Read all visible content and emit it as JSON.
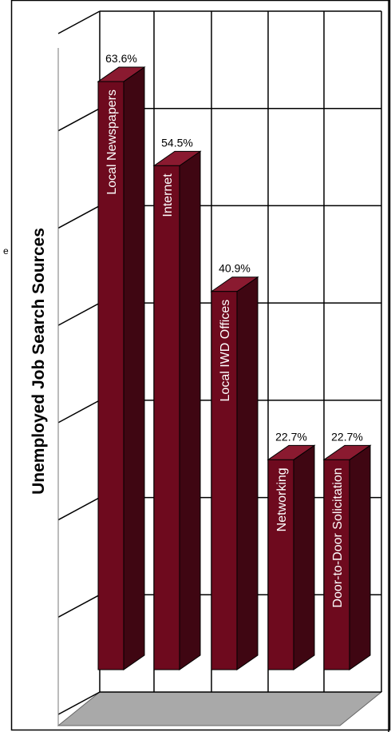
{
  "chart_data": {
    "type": "bar",
    "title": "Unemployed Job Search Sources",
    "categories": [
      "Local Newspapers",
      "Internet",
      "Local IWD Offices",
      "Networking",
      "Door-to-Door Solicitation"
    ],
    "values": [
      63.6,
      54.5,
      40.9,
      22.7,
      22.7
    ],
    "data_labels": [
      "63.6%",
      "54.5%",
      "40.9%",
      "22.7%",
      "22.7%"
    ],
    "ylim": [
      0,
      70
    ],
    "grid": true,
    "legend": "none",
    "colors": {
      "bar_front": "#6e0a1e",
      "bar_side": "#3f0612",
      "bar_top": "#8a1a30",
      "floor": "#a9a9a9",
      "grid": "#000000"
    }
  }
}
